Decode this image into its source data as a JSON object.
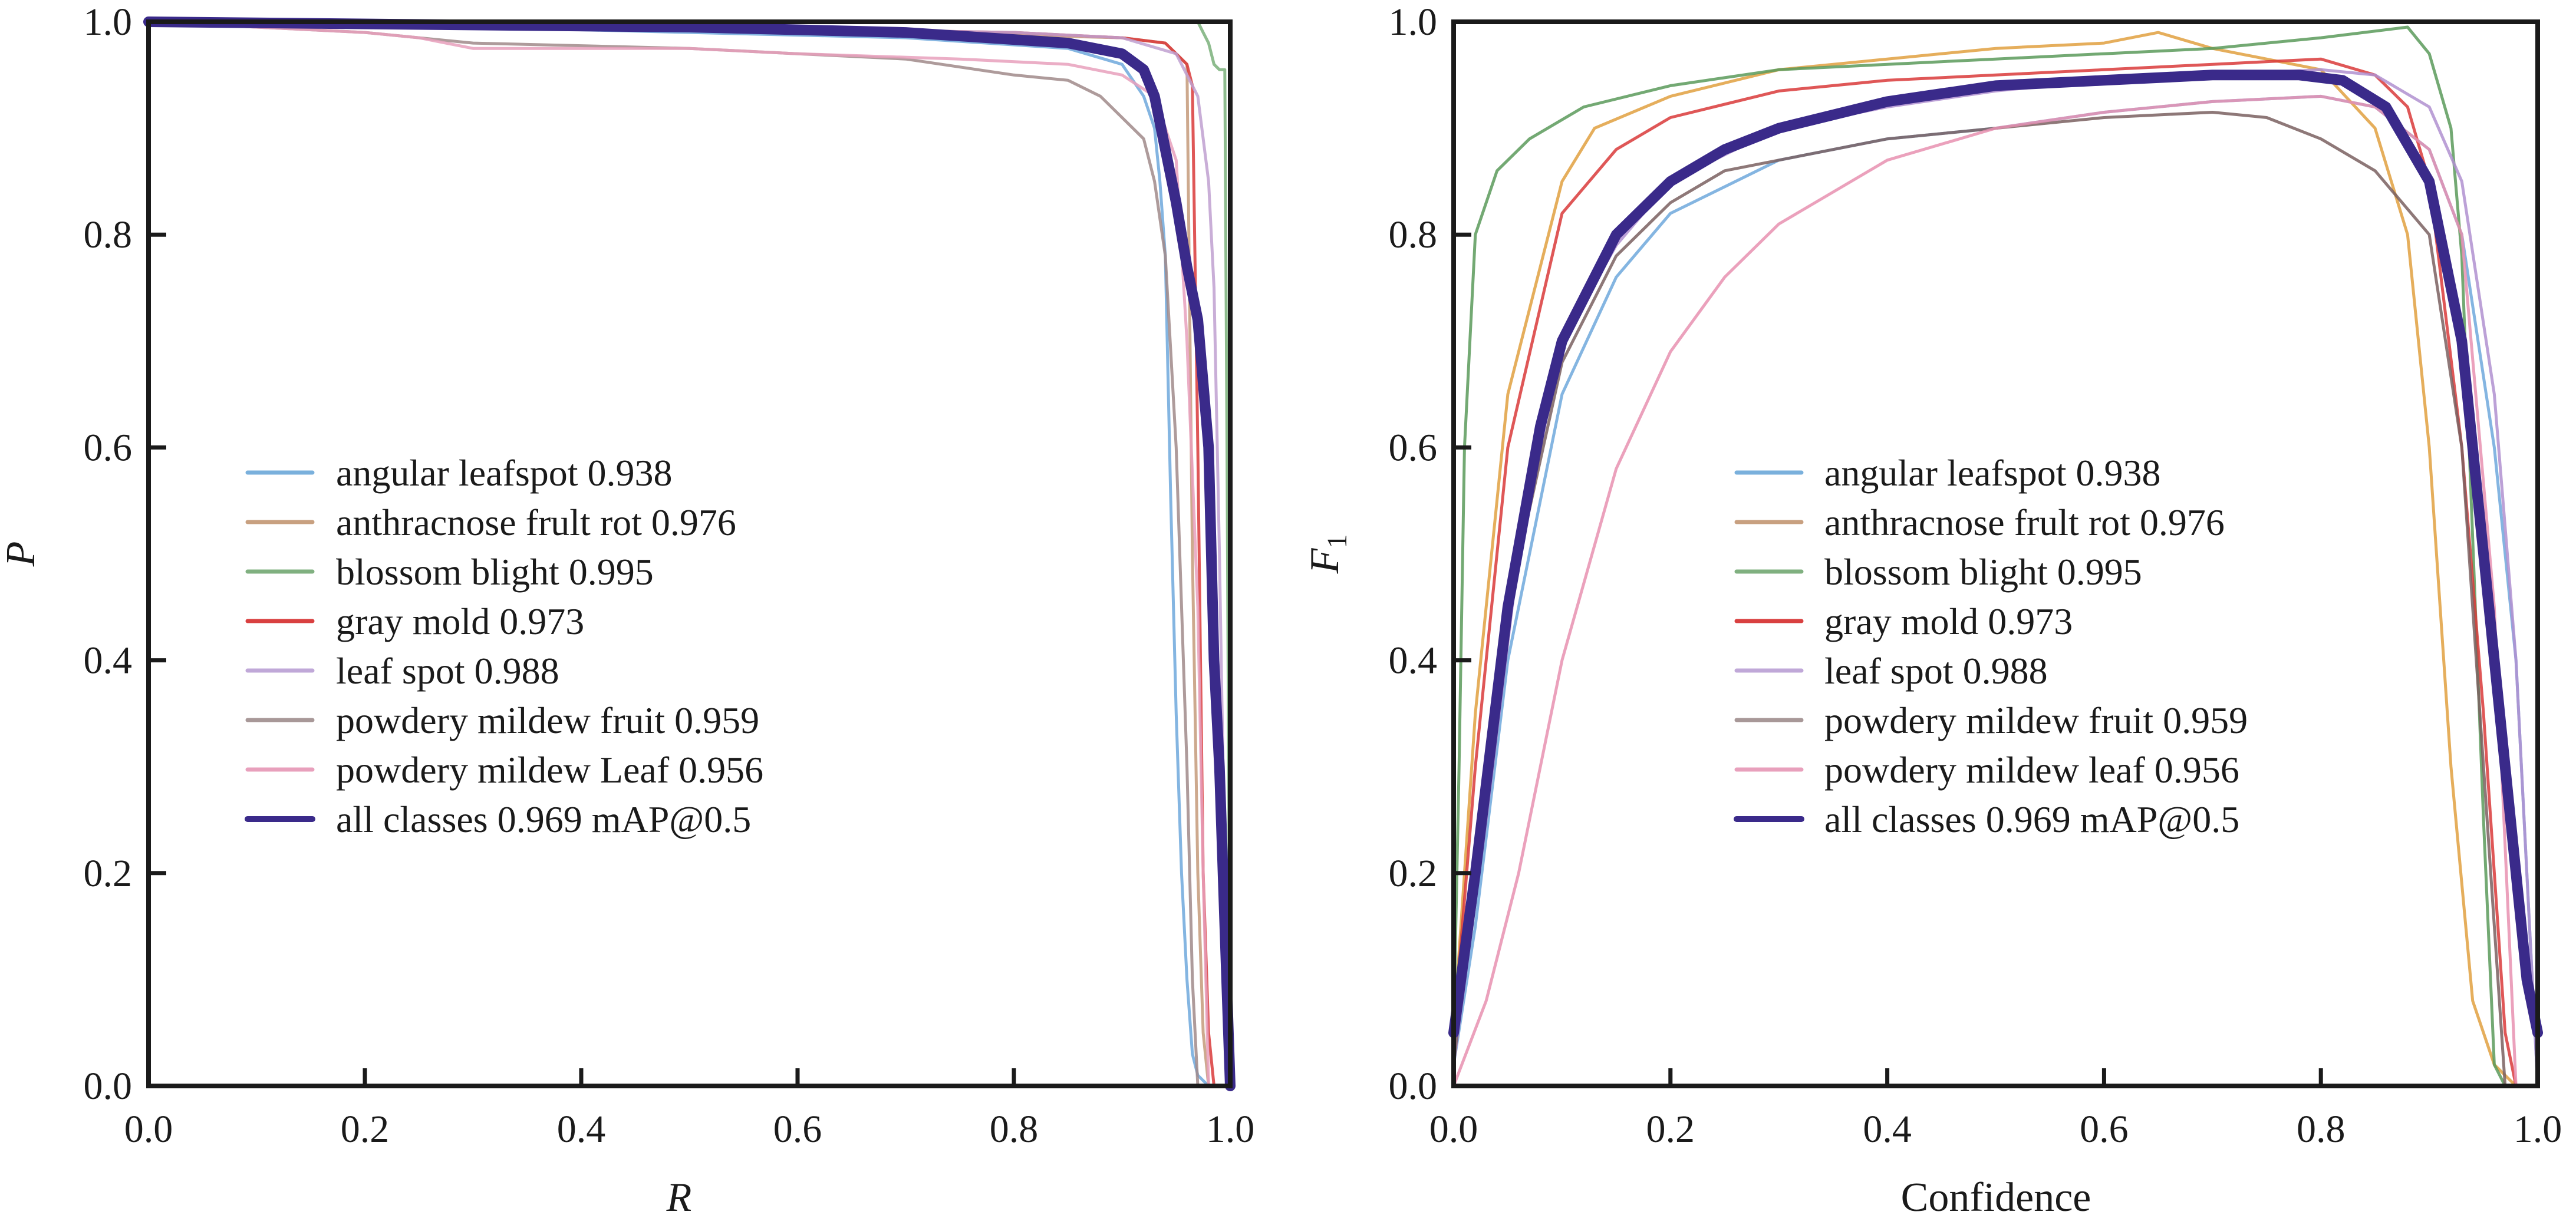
{
  "chart_data": [
    {
      "type": "line",
      "title": "",
      "xlabel": "R",
      "ylabel": "P",
      "xlim": [
        0.0,
        1.0
      ],
      "ylim": [
        0.0,
        1.0
      ],
      "xticks": [
        "0.0",
        "0.2",
        "0.4",
        "0.6",
        "0.8",
        "1.0"
      ],
      "yticks": [
        "0.0",
        "0.2",
        "0.4",
        "0.6",
        "0.8",
        "1.0"
      ],
      "grid": false,
      "legend_position": "center-left",
      "series": [
        {
          "name": "angular leafspot 0.938",
          "color": "#6fa8dc",
          "x": [
            0,
            0.3,
            0.5,
            0.7,
            0.85,
            0.9,
            0.92,
            0.93,
            0.935,
            0.94,
            0.945,
            0.95,
            0.955,
            0.96,
            0.965,
            0.97,
            0.98
          ],
          "y": [
            1.0,
            0.995,
            0.99,
            0.985,
            0.975,
            0.96,
            0.93,
            0.9,
            0.85,
            0.78,
            0.55,
            0.35,
            0.2,
            0.1,
            0.03,
            0.01,
            0.0
          ]
        },
        {
          "name": "anthracnose frult rot 0.976",
          "color": "#c49a7a",
          "x": [
            0,
            0.4,
            0.7,
            0.9,
            0.94,
            0.95,
            0.96,
            0.965,
            0.97,
            0.975,
            0.98
          ],
          "y": [
            1.0,
            0.995,
            0.99,
            0.985,
            0.98,
            0.97,
            0.96,
            0.5,
            0.2,
            0.05,
            0.0
          ]
        },
        {
          "name": "blossom blight 0.995",
          "color": "#7ab07a",
          "x": [
            0,
            0.5,
            0.9,
            0.97,
            0.975,
            0.98,
            0.985,
            0.99,
            0.995,
            0.997,
            1.0
          ],
          "y": [
            1.0,
            1.0,
            1.0,
            1.0,
            0.99,
            0.98,
            0.96,
            0.955,
            0.955,
            0.6,
            0.0
          ]
        },
        {
          "name": "gray mold 0.973",
          "color": "#d93a3a",
          "x": [
            0,
            0.5,
            0.8,
            0.9,
            0.94,
            0.96,
            0.965,
            0.97,
            0.975,
            0.98,
            0.985
          ],
          "y": [
            1.0,
            0.995,
            0.99,
            0.985,
            0.98,
            0.96,
            0.94,
            0.6,
            0.2,
            0.05,
            0.0
          ]
        },
        {
          "name": "leaf spot 0.988",
          "color": "#c0a0d0",
          "x": [
            0,
            0.5,
            0.8,
            0.9,
            0.95,
            0.97,
            0.98,
            0.985,
            0.99,
            0.995,
            1.0
          ],
          "y": [
            1.0,
            0.995,
            0.99,
            0.985,
            0.97,
            0.93,
            0.85,
            0.75,
            0.5,
            0.2,
            0.0
          ]
        },
        {
          "name": "powdery mildew fruit 0.959",
          "color": "#a08a8a",
          "x": [
            0,
            0.2,
            0.3,
            0.5,
            0.6,
            0.7,
            0.8,
            0.85,
            0.88,
            0.9,
            0.92,
            0.93,
            0.94,
            0.95,
            0.96,
            0.965,
            0.97
          ],
          "y": [
            1.0,
            0.99,
            0.98,
            0.975,
            0.97,
            0.965,
            0.95,
            0.945,
            0.93,
            0.91,
            0.89,
            0.85,
            0.78,
            0.6,
            0.3,
            0.1,
            0.0
          ]
        },
        {
          "name": "powdery mildew Leaf 0.956",
          "color": "#e8a0bc",
          "x": [
            0,
            0.2,
            0.25,
            0.3,
            0.5,
            0.6,
            0.75,
            0.85,
            0.9,
            0.93,
            0.95,
            0.96,
            0.97,
            0.975,
            0.98
          ],
          "y": [
            1.0,
            0.99,
            0.985,
            0.975,
            0.975,
            0.97,
            0.965,
            0.96,
            0.95,
            0.93,
            0.87,
            0.7,
            0.45,
            0.2,
            0.0
          ]
        },
        {
          "name": "all classes 0.969 mAP@0.5",
          "color": "#3a2a8a",
          "x": [
            0,
            0.5,
            0.7,
            0.85,
            0.9,
            0.92,
            0.93,
            0.94,
            0.95,
            0.96,
            0.97,
            0.98,
            0.985,
            0.99,
            0.995,
            1.0
          ],
          "y": [
            1.0,
            0.995,
            0.99,
            0.98,
            0.97,
            0.955,
            0.93,
            0.88,
            0.83,
            0.77,
            0.72,
            0.6,
            0.4,
            0.3,
            0.15,
            0.0
          ]
        }
      ]
    },
    {
      "type": "line",
      "title": "",
      "xlabel": "Confidence",
      "ylabel": "F1",
      "xlim": [
        0.0,
        1.0
      ],
      "ylim": [
        0.0,
        1.0
      ],
      "xticks": [
        "0.0",
        "0.2",
        "0.4",
        "0.6",
        "0.8",
        "1.0"
      ],
      "yticks": [
        "0.0",
        "0.2",
        "0.4",
        "0.6",
        "0.8",
        "1.0"
      ],
      "grid": false,
      "legend_position": "center",
      "series": [
        {
          "name": "angular leafspot 0.938",
          "color": "#6fa8dc",
          "x": [
            0,
            0.02,
            0.05,
            0.1,
            0.15,
            0.2,
            0.3,
            0.4,
            0.5,
            0.6,
            0.7,
            0.8,
            0.85,
            0.9,
            0.93,
            0.96,
            0.98,
            1.0
          ],
          "y": [
            0.02,
            0.15,
            0.4,
            0.65,
            0.76,
            0.82,
            0.87,
            0.89,
            0.9,
            0.915,
            0.925,
            0.93,
            0.92,
            0.88,
            0.8,
            0.6,
            0.4,
            0.0
          ]
        },
        {
          "name": "anthracnose frult rot 0.976",
          "color": "#e0a040",
          "x": [
            0,
            0.02,
            0.05,
            0.1,
            0.13,
            0.2,
            0.3,
            0.4,
            0.5,
            0.6,
            0.65,
            0.7,
            0.8,
            0.85,
            0.88,
            0.9,
            0.92,
            0.94,
            0.96,
            0.98
          ],
          "y": [
            0.05,
            0.35,
            0.65,
            0.85,
            0.9,
            0.93,
            0.955,
            0.965,
            0.975,
            0.98,
            0.99,
            0.975,
            0.955,
            0.9,
            0.8,
            0.6,
            0.3,
            0.08,
            0.02,
            0.0
          ]
        },
        {
          "name": "blossom blight 0.995",
          "color": "#5a9a5a",
          "x": [
            0,
            0.005,
            0.01,
            0.02,
            0.04,
            0.07,
            0.12,
            0.2,
            0.3,
            0.4,
            0.5,
            0.6,
            0.7,
            0.8,
            0.88,
            0.9,
            0.92,
            0.93,
            0.95,
            0.96,
            0.97
          ],
          "y": [
            0.05,
            0.3,
            0.6,
            0.8,
            0.86,
            0.89,
            0.92,
            0.94,
            0.955,
            0.96,
            0.965,
            0.97,
            0.975,
            0.985,
            0.995,
            0.97,
            0.9,
            0.78,
            0.25,
            0.02,
            0.0
          ]
        },
        {
          "name": "gray mold 0.973",
          "color": "#d93a3a",
          "x": [
            0,
            0.02,
            0.05,
            0.1,
            0.15,
            0.2,
            0.3,
            0.4,
            0.5,
            0.6,
            0.7,
            0.8,
            0.85,
            0.88,
            0.9,
            0.93,
            0.95,
            0.97,
            0.98
          ],
          "y": [
            0.05,
            0.3,
            0.6,
            0.82,
            0.88,
            0.91,
            0.935,
            0.945,
            0.95,
            0.955,
            0.96,
            0.965,
            0.95,
            0.92,
            0.85,
            0.6,
            0.35,
            0.05,
            0.0
          ]
        },
        {
          "name": "leaf spot 0.988",
          "color": "#b090d0",
          "x": [
            0,
            0.03,
            0.06,
            0.1,
            0.15,
            0.2,
            0.3,
            0.4,
            0.5,
            0.6,
            0.7,
            0.8,
            0.85,
            0.9,
            0.93,
            0.96,
            0.98,
            1.0
          ],
          "y": [
            0.02,
            0.25,
            0.5,
            0.7,
            0.79,
            0.85,
            0.9,
            0.92,
            0.935,
            0.945,
            0.95,
            0.955,
            0.95,
            0.92,
            0.85,
            0.65,
            0.4,
            0.0
          ]
        },
        {
          "name": "powdery mildew fruit 0.959",
          "color": "#7a6060",
          "x": [
            0,
            0.02,
            0.05,
            0.1,
            0.15,
            0.2,
            0.25,
            0.3,
            0.4,
            0.5,
            0.6,
            0.7,
            0.75,
            0.8,
            0.85,
            0.9,
            0.93,
            0.95,
            0.97
          ],
          "y": [
            0.02,
            0.2,
            0.45,
            0.68,
            0.78,
            0.83,
            0.86,
            0.87,
            0.89,
            0.9,
            0.91,
            0.915,
            0.91,
            0.89,
            0.86,
            0.8,
            0.6,
            0.3,
            0.0
          ]
        },
        {
          "name": "powdery mildew leaf 0.956",
          "color": "#e890b0",
          "x": [
            0,
            0.03,
            0.06,
            0.1,
            0.15,
            0.2,
            0.25,
            0.3,
            0.4,
            0.5,
            0.6,
            0.7,
            0.8,
            0.85,
            0.9,
            0.93,
            0.96,
            0.98
          ],
          "y": [
            0.0,
            0.08,
            0.2,
            0.4,
            0.58,
            0.69,
            0.76,
            0.81,
            0.87,
            0.9,
            0.915,
            0.925,
            0.93,
            0.92,
            0.88,
            0.8,
            0.45,
            0.0
          ]
        },
        {
          "name": "all classes 0.969 mAP@0.5",
          "color": "#3a2a8a",
          "x": [
            0,
            0.02,
            0.05,
            0.08,
            0.1,
            0.15,
            0.2,
            0.25,
            0.3,
            0.4,
            0.5,
            0.6,
            0.7,
            0.78,
            0.82,
            0.86,
            0.9,
            0.93,
            0.95,
            0.97,
            0.99,
            1.0
          ],
          "y": [
            0.05,
            0.2,
            0.45,
            0.62,
            0.7,
            0.8,
            0.85,
            0.88,
            0.9,
            0.925,
            0.94,
            0.945,
            0.95,
            0.95,
            0.945,
            0.92,
            0.85,
            0.7,
            0.5,
            0.3,
            0.1,
            0.05
          ]
        }
      ]
    }
  ],
  "legend_labels_left": [
    "angular leafspot 0.938",
    "anthracnose frult rot 0.976",
    "blossom blight 0.995",
    "gray mold 0.973",
    "leaf spot 0.988",
    "powdery mildew fruit 0.959",
    "powdery mildew Leaf 0.956",
    "all classes 0.969 mAP@0.5"
  ],
  "legend_labels_right": [
    "angular leafspot 0.938",
    "anthracnose frult rot 0.976",
    "blossom blight 0.995",
    "gray mold 0.973",
    "leaf spot 0.988",
    "powdery mildew fruit 0.959",
    "powdery mildew leaf 0.956",
    "all classes 0.969 mAP@0.5"
  ],
  "legend_colors": [
    "#7ab0dc",
    "#c8a080",
    "#80b080",
    "#d94040",
    "#c0a8d8",
    "#a89898",
    "#e8a0bc",
    "#3a2a8a"
  ]
}
